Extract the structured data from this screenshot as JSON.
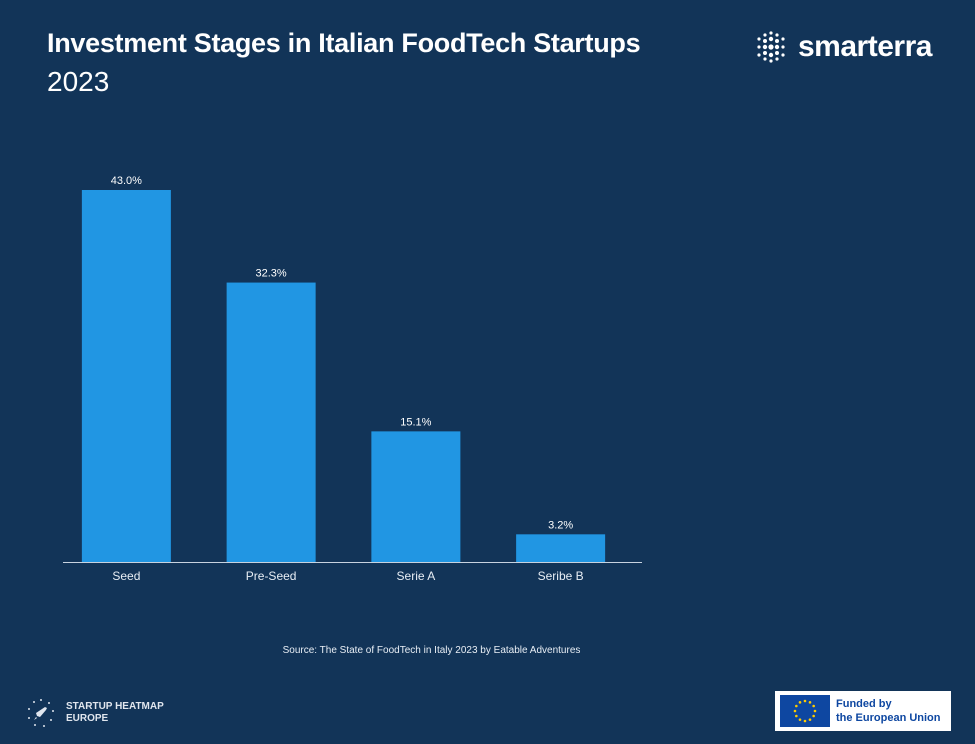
{
  "header": {
    "title": "Investment Stages in Italian FoodTech Startups",
    "subtitle": "2023"
  },
  "brand": {
    "name": "smarterra",
    "icon": "dot-grid-icon"
  },
  "chart_data": {
    "type": "bar",
    "categories": [
      "Seed",
      "Pre-Seed",
      "Serie A",
      "Seribe B"
    ],
    "values": [
      43.0,
      32.3,
      15.1,
      3.2
    ],
    "value_labels": [
      "43.0%",
      "32.3%",
      "15.1%",
      "3.2%"
    ],
    "ylim": [
      0,
      43
    ],
    "grid": false,
    "legend": "none",
    "bar_color": "#2196e3"
  },
  "footer": {
    "source": "Source: The State of FoodTech in Italy 2023 by Eatable Adventures",
    "heatmap_line1": "STARTUP HEATMAP",
    "heatmap_line2": "EUROPE",
    "eu_line1": "Funded by",
    "eu_line2": "the European Union"
  },
  "colors": {
    "background": "#123458",
    "bar": "#2196e3",
    "eu_blue": "#0e47a1",
    "eu_star": "#ffcc00"
  }
}
